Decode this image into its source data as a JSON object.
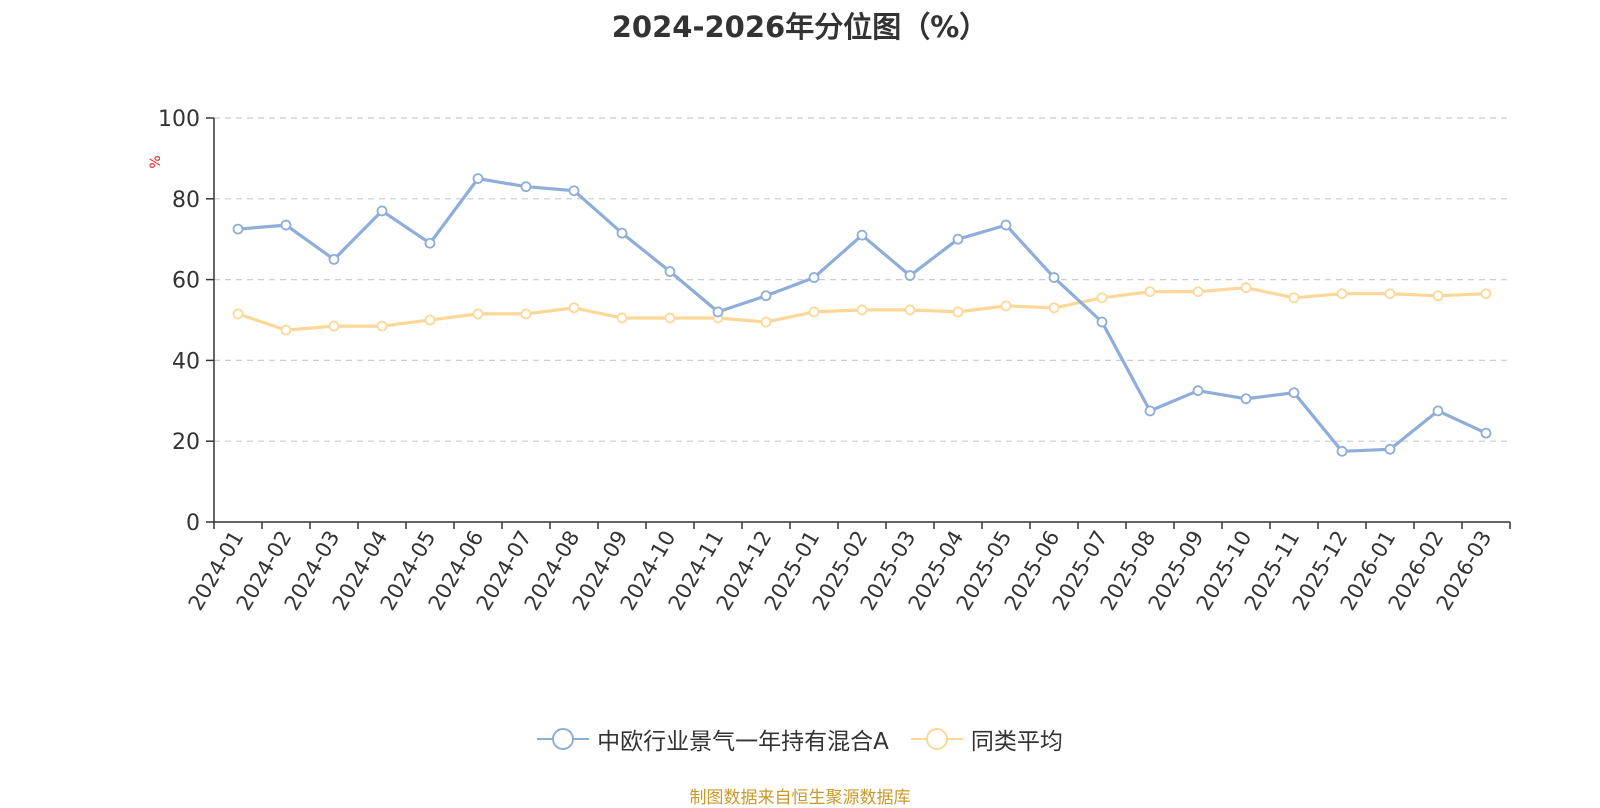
{
  "chart_data": {
    "type": "line",
    "title": "2024-2026年分位图（%）",
    "ylabel": "%",
    "ylim": [
      0,
      100
    ],
    "yticks": [
      "0",
      "20",
      "40",
      "60",
      "80",
      "100"
    ],
    "grid": "horizontal dashed",
    "legend_position": "bottom",
    "categories": [
      "2024-01",
      "2024-02",
      "2024-03",
      "2024-04",
      "2024-05",
      "2024-06",
      "2024-07",
      "2024-08",
      "2024-09",
      "2024-10",
      "2024-11",
      "2024-12",
      "2025-01",
      "2025-02",
      "2025-03",
      "2025-04",
      "2025-05",
      "2025-06",
      "2025-07",
      "2025-08",
      "2025-09",
      "2025-10",
      "2025-11",
      "2025-12",
      "2026-01",
      "2026-02",
      "2026-03"
    ],
    "series": [
      {
        "name": "中欧行业景气一年持有混合A",
        "color": "#8eadd9",
        "values": [
          72.5,
          73.5,
          65,
          77,
          69,
          85,
          83,
          82,
          71.5,
          62,
          52,
          56,
          60.5,
          71,
          61,
          70,
          73.5,
          60.5,
          49.5,
          27.5,
          32.5,
          30.5,
          32,
          17.5,
          18,
          27.5,
          22
        ]
      },
      {
        "name": "同类平均",
        "color": "#fcd898",
        "values": [
          51.5,
          47.5,
          48.5,
          48.5,
          50,
          51.5,
          51.5,
          53,
          50.5,
          50.5,
          50.5,
          49.5,
          52,
          52.5,
          52.5,
          52,
          53.5,
          53,
          55.5,
          57,
          57,
          58,
          55.5,
          56.5,
          56.5,
          56,
          56.5
        ]
      }
    ]
  },
  "source": "制图数据来自恒生聚源数据库"
}
